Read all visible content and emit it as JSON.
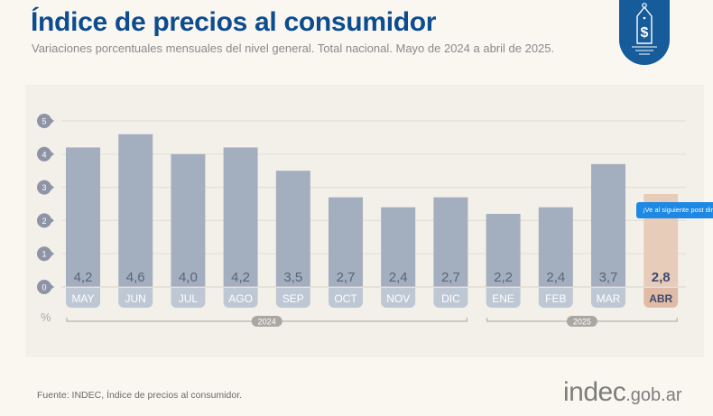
{
  "header": {
    "title": "Índice de precios al consumidor",
    "subtitle": "Variaciones porcentuales mensuales del nivel general. Total nacional. Mayo de 2024 a abril de 2025."
  },
  "badge": {
    "icon": "price-tag-dollar-icon"
  },
  "tooltip": {
    "text": "¡Ve al siguiente post direct"
  },
  "footer": {
    "source": "Fuente: INDEC, Índice de precios al consumidor.",
    "logo_main": "indec",
    "logo_domain": ".gob.ar"
  },
  "colors": {
    "title": "#0d4c8f",
    "bar": "#a3afbf",
    "label_bg": "#bec7d4",
    "highlight_bar": "#e8ccba",
    "highlight_label": "#e0bca6",
    "axis_marker": "#8e93a6",
    "badge": "#165b9a"
  },
  "chart_data": {
    "type": "bar",
    "title": "Índice de precios al consumidor",
    "ylabel": "%",
    "ylim": [
      0,
      5
    ],
    "yticks": [
      0,
      1,
      2,
      3,
      4,
      5
    ],
    "grid": true,
    "categories": [
      "MAY",
      "JUN",
      "JUL",
      "AGO",
      "SEP",
      "OCT",
      "NOV",
      "DIC",
      "ENE",
      "FEB",
      "MAR",
      "ABR"
    ],
    "values": [
      4.2,
      4.6,
      4.0,
      4.2,
      3.5,
      2.7,
      2.4,
      2.7,
      2.2,
      2.4,
      3.7,
      2.8
    ],
    "value_labels": [
      "4,2",
      "4,6",
      "4,0",
      "4,2",
      "3,5",
      "2,7",
      "2,4",
      "2,7",
      "2,2",
      "2,4",
      "3,7",
      "2,8"
    ],
    "highlight_index": 11,
    "year_groups": [
      {
        "label": "2024",
        "start": 0,
        "end": 7
      },
      {
        "label": "2025",
        "start": 8,
        "end": 11
      }
    ]
  }
}
